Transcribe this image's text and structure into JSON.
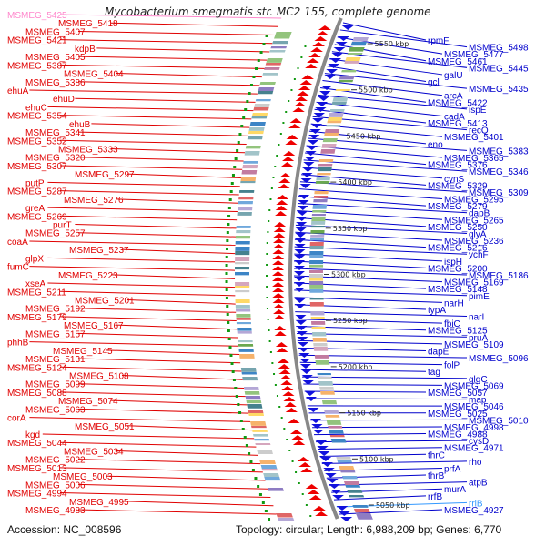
{
  "title": "Mycobacterium smegmatis str. MC2 155, complete genome",
  "accession_text": "Accession: NC_008596",
  "topology_text": "Topology: circular; Length: 6,988,209 bp; Genes: 6,770",
  "colors": {
    "left_label": "#e00000",
    "right_label": "#0000cc",
    "faint_left": "#ff88cc",
    "faint_right": "#3399ff",
    "plus_strand": "#ee0000",
    "minus_strand": "#1111dd",
    "backbone": "#888888",
    "tick_green": "#119911"
  },
  "kbp_ticks": [
    "5550 kbp",
    "5500 kbp",
    "5450 kbp",
    "5400 kbp",
    "5350 kbp",
    "5300 kbp",
    "5250 kbp",
    "5200 kbp",
    "5150 kbp",
    "5100 kbp",
    "5050 kbp"
  ],
  "left_labels": [
    {
      "t": "MSMEG_5425",
      "faint": true
    },
    {
      "t": "MSMEG_5418"
    },
    {
      "t": "MSMEG_5407"
    },
    {
      "t": "MSMEG_5421"
    },
    {
      "t": "kdpB"
    },
    {
      "t": "MSMEG_5405"
    },
    {
      "t": "MSMEG_5387"
    },
    {
      "t": "MSMEG_5404"
    },
    {
      "t": "MSMEG_5386"
    },
    {
      "t": "ehuA"
    },
    {
      "t": "ehuD"
    },
    {
      "t": "ehuC"
    },
    {
      "t": "MSMEG_5354"
    },
    {
      "t": "ehuB"
    },
    {
      "t": "MSMEG_5341"
    },
    {
      "t": "MSMEG_5352"
    },
    {
      "t": "MSMEG_5333"
    },
    {
      "t": "MSMEG_5320"
    },
    {
      "t": "MSMEG_5307"
    },
    {
      "t": "MSMEG_5297"
    },
    {
      "t": "putP"
    },
    {
      "t": "MSMEG_5287"
    },
    {
      "t": "MSMEG_5276"
    },
    {
      "t": "greA"
    },
    {
      "t": "MSMEG_5269"
    },
    {
      "t": "purT"
    },
    {
      "t": "MSMEG_5257"
    },
    {
      "t": "coaA"
    },
    {
      "t": "MSMEG_5237"
    },
    {
      "t": "glpX"
    },
    {
      "t": "fumC"
    },
    {
      "t": "MSMEG_5223"
    },
    {
      "t": "xseA"
    },
    {
      "t": "MSMEG_5211"
    },
    {
      "t": "MSMEG_5201"
    },
    {
      "t": "MSMEG_5192"
    },
    {
      "t": "MSMEG_5179"
    },
    {
      "t": "MSMEG_5167"
    },
    {
      "t": "MSMEG_5157"
    },
    {
      "t": "phhB"
    },
    {
      "t": "MSMEG_5145"
    },
    {
      "t": "MSMEG_5131"
    },
    {
      "t": "MSMEG_5124"
    },
    {
      "t": "MSMEG_5108"
    },
    {
      "t": "MSMEG_5099"
    },
    {
      "t": "MSMEG_5088"
    },
    {
      "t": "MSMEG_5074"
    },
    {
      "t": "MSMEG_5063"
    },
    {
      "t": "corA"
    },
    {
      "t": "MSMEG_5051"
    },
    {
      "t": "kgd"
    },
    {
      "t": "MSMEG_5044"
    },
    {
      "t": "MSMEG_5034"
    },
    {
      "t": "MSMEG_5022"
    },
    {
      "t": "MSMEG_5013"
    },
    {
      "t": "MSMEG_5003"
    },
    {
      "t": "MSMEG_5006"
    },
    {
      "t": "MSMEG_4994"
    },
    {
      "t": "MSMEG_4995"
    },
    {
      "t": "MSMEG_4983"
    }
  ],
  "right_labels": [
    {
      "t": "rpmF"
    },
    {
      "t": "MSMEG_5498"
    },
    {
      "t": "MSMEG_5477"
    },
    {
      "t": "MSMEG_5461"
    },
    {
      "t": "MSMEG_5445"
    },
    {
      "t": "galU"
    },
    {
      "t": "gcl"
    },
    {
      "t": "MSMEG_5435"
    },
    {
      "t": "arcA"
    },
    {
      "t": "MSMEG_5422"
    },
    {
      "t": "ispE"
    },
    {
      "t": "cadA"
    },
    {
      "t": "MSMEG_5413"
    },
    {
      "t": "recQ"
    },
    {
      "t": "MSMEG_5401"
    },
    {
      "t": "eno"
    },
    {
      "t": "MSMEG_5383"
    },
    {
      "t": "MSMEG_5365"
    },
    {
      "t": "MSMEG_5376"
    },
    {
      "t": "MSMEG_5346"
    },
    {
      "t": "cynS"
    },
    {
      "t": "MSMEG_5329"
    },
    {
      "t": "MSMEG_5309"
    },
    {
      "t": "MSMEG_5295"
    },
    {
      "t": "MSMEG_5279"
    },
    {
      "t": "dapB"
    },
    {
      "t": "MSMEG_5265"
    },
    {
      "t": "MSMEG_5250"
    },
    {
      "t": "glyA"
    },
    {
      "t": "MSMEG_5236"
    },
    {
      "t": "MSMEG_5216"
    },
    {
      "t": "ychF"
    },
    {
      "t": "ispH"
    },
    {
      "t": "MSMEG_5200"
    },
    {
      "t": "MSMEG_5186"
    },
    {
      "t": "MSMEG_5169"
    },
    {
      "t": "MSMEG_5148"
    },
    {
      "t": "pimE"
    },
    {
      "t": "narH"
    },
    {
      "t": "typA"
    },
    {
      "t": "narI"
    },
    {
      "t": "fbiC"
    },
    {
      "t": "MSMEG_5125"
    },
    {
      "t": "pruA"
    },
    {
      "t": "MSMEG_5109"
    },
    {
      "t": "dapE"
    },
    {
      "t": "MSMEG_5096"
    },
    {
      "t": "folP"
    },
    {
      "t": "tag"
    },
    {
      "t": "glgC"
    },
    {
      "t": "MSMEG_5069"
    },
    {
      "t": "MSMEG_5057"
    },
    {
      "t": "map"
    },
    {
      "t": "MSMEG_5046"
    },
    {
      "t": "MSMEG_5025"
    },
    {
      "t": "MSMEG_5010"
    },
    {
      "t": "MSMEG_4998"
    },
    {
      "t": "MSMEG_4988"
    },
    {
      "t": "cysD"
    },
    {
      "t": "MSMEG_4971"
    },
    {
      "t": "thrC"
    },
    {
      "t": "rho"
    },
    {
      "t": "prfA"
    },
    {
      "t": "thrB"
    },
    {
      "t": "atpB"
    },
    {
      "t": "murA"
    },
    {
      "t": "rrfB"
    },
    {
      "t": "rrlB",
      "faint": true
    },
    {
      "t": "MSMEG_4927"
    }
  ]
}
